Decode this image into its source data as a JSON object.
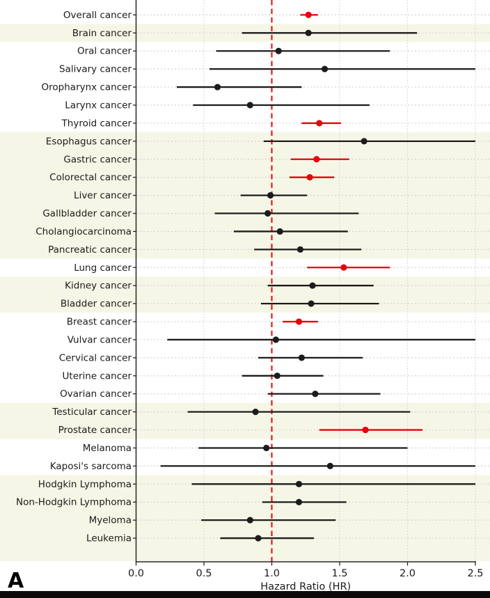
{
  "figure": {
    "panel_label": "A",
    "colors": {
      "marker_red": "#e8000b",
      "marker_black": "#1c1c1c",
      "reference_line_red": "#f20000",
      "band_cream": "#f6f6e7",
      "grid_gray": "#d2d2d2",
      "axis_dark": "#262626",
      "text_dark": "#1a1a1a"
    }
  },
  "chart_data": {
    "type": "scatter",
    "subtype": "forest-plot",
    "title": "",
    "xlabel": "Hazard Ratio (HR)",
    "ylabel": "",
    "xlim": [
      0.0,
      2.6
    ],
    "xticks": [
      "0.0",
      "0.5",
      "1.0",
      "1.5",
      "2.0",
      "2.5"
    ],
    "xtick_values": [
      0.0,
      0.5,
      1.0,
      1.5,
      2.0,
      2.5
    ],
    "gridline_values": [
      0.5,
      1.5,
      2.0,
      2.5
    ],
    "reference_line_x": 1.0,
    "grid": true,
    "legend": "none",
    "rows": [
      {
        "label": "Overall cancer",
        "hr": 1.27,
        "ci_low": 1.21,
        "ci_high": 1.34,
        "color": "red",
        "band": "white"
      },
      {
        "label": "Brain cancer",
        "hr": 1.27,
        "ci_low": 0.78,
        "ci_high": 2.07,
        "color": "black",
        "band": "cream"
      },
      {
        "label": "Oral cancer",
        "hr": 1.05,
        "ci_low": 0.59,
        "ci_high": 1.87,
        "color": "black",
        "band": "white"
      },
      {
        "label": "Salivary cancer",
        "hr": 1.39,
        "ci_low": 0.54,
        "ci_high": 2.5,
        "color": "black",
        "band": "white"
      },
      {
        "label": "Oropharynx cancer",
        "hr": 0.6,
        "ci_low": 0.3,
        "ci_high": 1.22,
        "color": "black",
        "band": "white"
      },
      {
        "label": "Larynx cancer",
        "hr": 0.84,
        "ci_low": 0.42,
        "ci_high": 1.72,
        "color": "black",
        "band": "white"
      },
      {
        "label": "Thyroid cancer",
        "hr": 1.35,
        "ci_low": 1.22,
        "ci_high": 1.51,
        "color": "red",
        "band": "white"
      },
      {
        "label": "Esophagus cancer",
        "hr": 1.68,
        "ci_low": 0.94,
        "ci_high": 2.5,
        "color": "black",
        "band": "cream"
      },
      {
        "label": "Gastric cancer",
        "hr": 1.33,
        "ci_low": 1.14,
        "ci_high": 1.57,
        "color": "red",
        "band": "cream"
      },
      {
        "label": "Colorectal cancer",
        "hr": 1.28,
        "ci_low": 1.13,
        "ci_high": 1.46,
        "color": "red",
        "band": "cream"
      },
      {
        "label": "Liver cancer",
        "hr": 0.99,
        "ci_low": 0.77,
        "ci_high": 1.26,
        "color": "black",
        "band": "cream"
      },
      {
        "label": "Gallbladder cancer",
        "hr": 0.97,
        "ci_low": 0.58,
        "ci_high": 1.64,
        "color": "black",
        "band": "cream"
      },
      {
        "label": "Cholangiocarcinoma",
        "hr": 1.06,
        "ci_low": 0.72,
        "ci_high": 1.56,
        "color": "black",
        "band": "cream"
      },
      {
        "label": "Pancreatic cancer",
        "hr": 1.21,
        "ci_low": 0.87,
        "ci_high": 1.66,
        "color": "black",
        "band": "cream"
      },
      {
        "label": "Lung cancer",
        "hr": 1.53,
        "ci_low": 1.26,
        "ci_high": 1.87,
        "color": "red",
        "band": "white"
      },
      {
        "label": "Kidney cancer",
        "hr": 1.3,
        "ci_low": 0.97,
        "ci_high": 1.75,
        "color": "black",
        "band": "cream"
      },
      {
        "label": "Bladder cancer",
        "hr": 1.29,
        "ci_low": 0.92,
        "ci_high": 1.79,
        "color": "black",
        "band": "cream"
      },
      {
        "label": "Breast cancer",
        "hr": 1.2,
        "ci_low": 1.08,
        "ci_high": 1.34,
        "color": "red",
        "band": "white"
      },
      {
        "label": "Vulvar cancer",
        "hr": 1.03,
        "ci_low": 0.23,
        "ci_high": 2.5,
        "color": "black",
        "band": "white"
      },
      {
        "label": "Cervical cancer",
        "hr": 1.22,
        "ci_low": 0.9,
        "ci_high": 1.67,
        "color": "black",
        "band": "white"
      },
      {
        "label": "Uterine cancer",
        "hr": 1.04,
        "ci_low": 0.78,
        "ci_high": 1.38,
        "color": "black",
        "band": "white"
      },
      {
        "label": "Ovarian cancer",
        "hr": 1.32,
        "ci_low": 0.97,
        "ci_high": 1.8,
        "color": "black",
        "band": "white"
      },
      {
        "label": "Testicular cancer",
        "hr": 0.88,
        "ci_low": 0.38,
        "ci_high": 2.02,
        "color": "black",
        "band": "cream"
      },
      {
        "label": "Prostate cancer",
        "hr": 1.69,
        "ci_low": 1.35,
        "ci_high": 2.11,
        "color": "red",
        "band": "cream"
      },
      {
        "label": "Melanoma",
        "hr": 0.96,
        "ci_low": 0.46,
        "ci_high": 2.0,
        "color": "black",
        "band": "white"
      },
      {
        "label": "Kaposi's sarcoma",
        "hr": 1.43,
        "ci_low": 0.18,
        "ci_high": 2.5,
        "color": "black",
        "band": "white"
      },
      {
        "label": "Hodgkin Lymphoma",
        "hr": 1.2,
        "ci_low": 0.41,
        "ci_high": 2.5,
        "color": "black",
        "band": "cream"
      },
      {
        "label": "Non-Hodgkin Lymphoma",
        "hr": 1.2,
        "ci_low": 0.93,
        "ci_high": 1.55,
        "color": "black",
        "band": "cream"
      },
      {
        "label": "Myeloma",
        "hr": 0.84,
        "ci_low": 0.48,
        "ci_high": 1.47,
        "color": "black",
        "band": "cream"
      },
      {
        "label": "Leukemia",
        "hr": 0.9,
        "ci_low": 0.62,
        "ci_high": 1.31,
        "color": "black",
        "band": "cream"
      }
    ]
  }
}
